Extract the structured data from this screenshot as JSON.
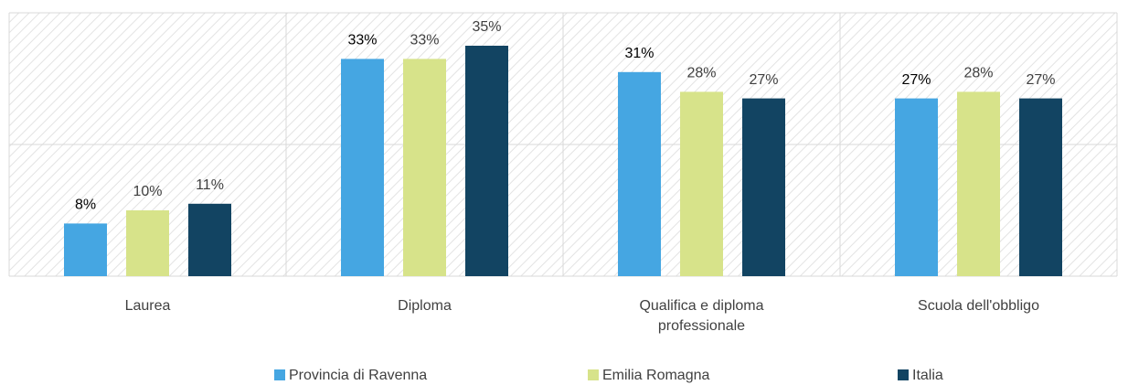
{
  "chart_data": {
    "type": "bar",
    "categories": [
      "Laurea",
      "Diploma",
      "Qualifica e diploma professionale",
      "Scuola dell'obbligo"
    ],
    "series": [
      {
        "name": "Provincia di Ravenna",
        "color": "#45a6e2",
        "values": [
          8,
          33,
          31,
          27
        ],
        "value_labels": [
          "8%",
          "33%",
          "31%",
          "27%"
        ]
      },
      {
        "name": "Emilia Romagna",
        "color": "#d7e38a",
        "values": [
          10,
          33,
          28,
          28
        ],
        "value_labels": [
          "10%",
          "33%",
          "28%",
          "28%"
        ]
      },
      {
        "name": "Italia",
        "color": "#124462",
        "values": [
          11,
          35,
          27,
          27
        ],
        "value_labels": [
          "11%",
          "35%",
          "27%",
          "27%"
        ]
      }
    ],
    "ylim": [
      0,
      40
    ],
    "yticks": [
      0,
      20,
      40
    ],
    "grid": true
  }
}
